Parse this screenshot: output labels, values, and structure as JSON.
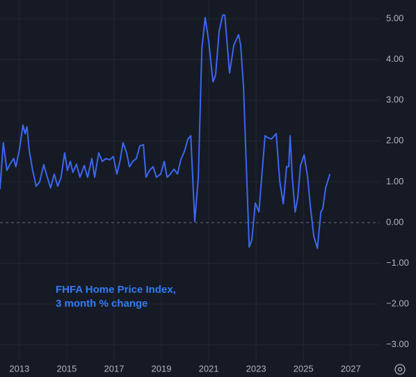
{
  "chart_data": {
    "type": "line",
    "annotation": [
      "FHFA Home Price Index,",
      "3 month % change"
    ],
    "x": [
      2012.18,
      2012.32,
      2012.47,
      2012.62,
      2012.76,
      2012.85,
      2013.0,
      2013.15,
      2013.24,
      2013.32,
      2013.41,
      2013.56,
      2013.71,
      2013.85,
      2014.03,
      2014.18,
      2014.32,
      2014.47,
      2014.62,
      2014.76,
      2014.91,
      2015.03,
      2015.15,
      2015.26,
      2015.41,
      2015.56,
      2015.74,
      2015.88,
      2016.06,
      2016.18,
      2016.35,
      2016.5,
      2016.65,
      2016.82,
      2016.97,
      2017.12,
      2017.26,
      2017.38,
      2017.53,
      2017.65,
      2017.79,
      2017.94,
      2018.09,
      2018.24,
      2018.35,
      2018.5,
      2018.65,
      2018.79,
      2018.97,
      2019.12,
      2019.24,
      2019.38,
      2019.53,
      2019.68,
      2019.82,
      2019.97,
      2020.12,
      2020.24,
      2020.41,
      2020.56,
      2020.71,
      2020.85,
      2021.0,
      2021.18,
      2021.29,
      2021.44,
      2021.59,
      2021.68,
      2021.88,
      2022.06,
      2022.26,
      2022.35,
      2022.47,
      2022.71,
      2022.82,
      2022.97,
      2023.12,
      2023.38,
      2023.5,
      2023.65,
      2023.85,
      2024.0,
      2024.15,
      2024.29,
      2024.38,
      2024.44,
      2024.53,
      2024.65,
      2024.76,
      2024.88,
      2025.03,
      2025.18,
      2025.29,
      2025.44,
      2025.59,
      2025.74,
      2025.82,
      2025.94,
      2026.12
    ],
    "series": [
      {
        "color": "#3b68f0",
        "values": [
          0.82,
          1.96,
          1.28,
          1.45,
          1.57,
          1.37,
          1.79,
          2.39,
          2.18,
          2.35,
          1.79,
          1.28,
          0.89,
          0.99,
          1.42,
          1.11,
          0.85,
          1.19,
          0.89,
          1.11,
          1.71,
          1.28,
          1.5,
          1.23,
          1.43,
          1.11,
          1.4,
          1.11,
          1.57,
          1.11,
          1.71,
          1.5,
          1.57,
          1.54,
          1.62,
          1.19,
          1.54,
          1.96,
          1.71,
          1.37,
          1.5,
          1.57,
          1.88,
          1.91,
          1.11,
          1.28,
          1.37,
          1.11,
          1.19,
          1.5,
          1.11,
          1.19,
          1.31,
          1.19,
          1.54,
          1.74,
          2.05,
          2.13,
          0.03,
          1.11,
          4.27,
          5.03,
          4.44,
          3.45,
          3.62,
          4.69,
          5.09,
          5.09,
          3.67,
          4.35,
          4.61,
          4.35,
          3.33,
          -0.6,
          -0.43,
          0.48,
          0.26,
          2.13,
          2.08,
          2.05,
          2.18,
          1.02,
          0.46,
          1.37,
          1.37,
          2.13,
          1.11,
          0.26,
          0.6,
          1.4,
          1.66,
          1.11,
          0.43,
          -0.34,
          -0.63,
          0.26,
          0.34,
          0.85,
          1.19
        ]
      }
    ],
    "xlim": [
      2012.18,
      2028.2
    ],
    "xticks": [
      2013,
      2015,
      2017,
      2019,
      2021,
      2023,
      2025,
      2027
    ],
    "ylim": [
      -3.38,
      5.46
    ],
    "yticks": [
      {
        "value": 5,
        "label": "5.00"
      },
      {
        "value": 4,
        "label": "4.00"
      },
      {
        "value": 3,
        "label": "3.00"
      },
      {
        "value": 2,
        "label": "2.00"
      },
      {
        "value": 1,
        "label": "1.00"
      },
      {
        "value": 0,
        "label": "0.00"
      },
      {
        "value": -1,
        "label": "−1.00"
      },
      {
        "value": -2,
        "label": "−2.00"
      },
      {
        "value": -3,
        "label": "−3.00"
      }
    ],
    "grid": true
  }
}
